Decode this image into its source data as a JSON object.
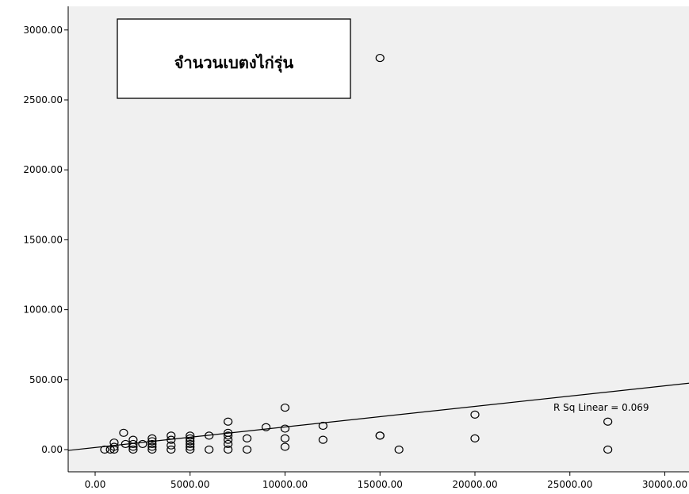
{
  "chart_data": {
    "type": "scatter",
    "title": "จำนวนเบตงไก่รุ่น",
    "xlabel": "",
    "ylabel": "",
    "xlim": [
      -1000,
      31000
    ],
    "ylim": [
      -170,
      3170
    ],
    "x_ticks": [
      0,
      5000,
      10000,
      15000,
      20000,
      25000,
      30000
    ],
    "x_tick_labels": [
      "0.00",
      "5000.00",
      "10000.00",
      "15000.00",
      "20000.00",
      "25000.00",
      "30000.00"
    ],
    "y_ticks": [
      0,
      500,
      1000,
      1500,
      2000,
      2500,
      3000
    ],
    "y_tick_labels": [
      "0.00",
      "500.00",
      "1000.00",
      "1500.00",
      "2000.00",
      "2500.00",
      "3000.00"
    ],
    "grid": false,
    "annotation": "R Sq Linear = 0.069",
    "fit_line": {
      "intercept": 15,
      "slope": 0.0147
    },
    "points": [
      {
        "x": 500,
        "y": 0
      },
      {
        "x": 800,
        "y": 0
      },
      {
        "x": 1000,
        "y": 0
      },
      {
        "x": 1000,
        "y": 20
      },
      {
        "x": 1000,
        "y": 50
      },
      {
        "x": 1500,
        "y": 120
      },
      {
        "x": 1600,
        "y": 40
      },
      {
        "x": 2000,
        "y": 0
      },
      {
        "x": 2000,
        "y": 20
      },
      {
        "x": 2000,
        "y": 40
      },
      {
        "x": 2000,
        "y": 70
      },
      {
        "x": 2500,
        "y": 40
      },
      {
        "x": 3000,
        "y": 0
      },
      {
        "x": 3000,
        "y": 20
      },
      {
        "x": 3000,
        "y": 40
      },
      {
        "x": 3000,
        "y": 60
      },
      {
        "x": 3000,
        "y": 80
      },
      {
        "x": 4000,
        "y": 0
      },
      {
        "x": 4000,
        "y": 30
      },
      {
        "x": 4000,
        "y": 70
      },
      {
        "x": 4000,
        "y": 100
      },
      {
        "x": 5000,
        "y": 0
      },
      {
        "x": 5000,
        "y": 20
      },
      {
        "x": 5000,
        "y": 40
      },
      {
        "x": 5000,
        "y": 60
      },
      {
        "x": 5000,
        "y": 80
      },
      {
        "x": 5000,
        "y": 100
      },
      {
        "x": 6000,
        "y": 0
      },
      {
        "x": 6000,
        "y": 100
      },
      {
        "x": 7000,
        "y": 0
      },
      {
        "x": 7000,
        "y": 40
      },
      {
        "x": 7000,
        "y": 70
      },
      {
        "x": 7000,
        "y": 100
      },
      {
        "x": 7000,
        "y": 120
      },
      {
        "x": 7000,
        "y": 200
      },
      {
        "x": 8000,
        "y": 0
      },
      {
        "x": 8000,
        "y": 80
      },
      {
        "x": 9000,
        "y": 160
      },
      {
        "x": 10000,
        "y": 20
      },
      {
        "x": 10000,
        "y": 80
      },
      {
        "x": 10000,
        "y": 150
      },
      {
        "x": 10000,
        "y": 300
      },
      {
        "x": 12000,
        "y": 70
      },
      {
        "x": 12000,
        "y": 170
      },
      {
        "x": 15000,
        "y": 100
      },
      {
        "x": 15000,
        "y": 100
      },
      {
        "x": 15000,
        "y": 2800
      },
      {
        "x": 16000,
        "y": 0
      },
      {
        "x": 20000,
        "y": 80
      },
      {
        "x": 20000,
        "y": 250
      },
      {
        "x": 27000,
        "y": 0
      },
      {
        "x": 27000,
        "y": 200
      }
    ]
  }
}
